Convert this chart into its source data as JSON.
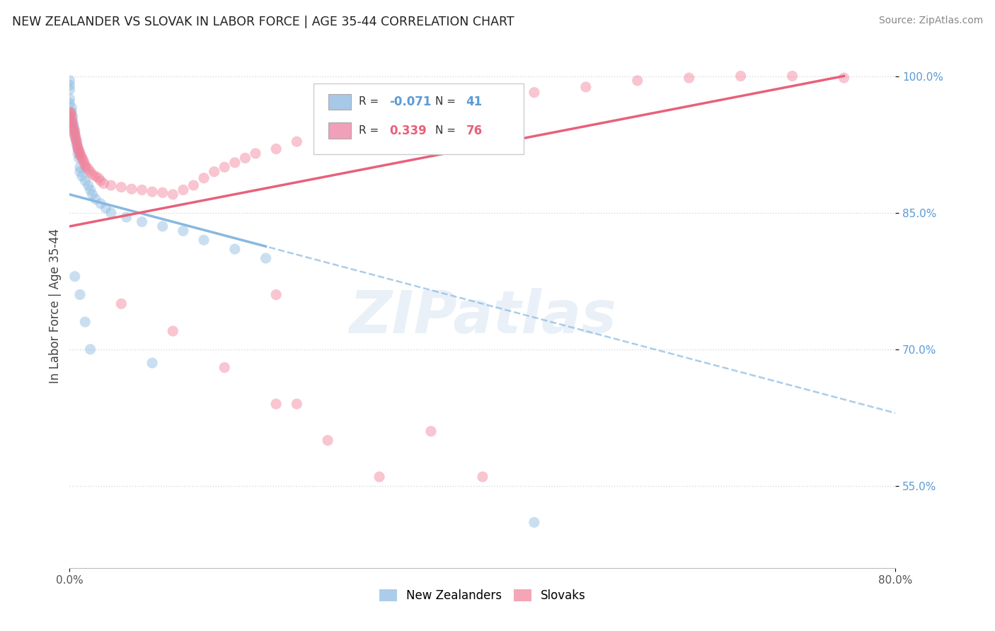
{
  "title": "NEW ZEALANDER VS SLOVAK IN LABOR FORCE | AGE 35-44 CORRELATION CHART",
  "source": "Source: ZipAtlas.com",
  "ylabel": "In Labor Force | Age 35-44",
  "xmin": 0.0,
  "xmax": 0.8,
  "ymin": 0.46,
  "ymax": 1.035,
  "y_tick_values": [
    0.55,
    0.7,
    0.85,
    1.0
  ],
  "legend_entries": [
    {
      "label": "New Zealanders",
      "color": "#a8c8e8",
      "R": "-0.071",
      "N": "41"
    },
    {
      "label": "Slovaks",
      "color": "#f0a0b8",
      "R": "0.339",
      "N": "76"
    }
  ],
  "watermark": "ZIPatlas",
  "background_color": "#ffffff",
  "scatter_size": 120,
  "scatter_alpha": 0.45,
  "nz_color": "#88b8e0",
  "sk_color": "#f08098",
  "nz_line_color": "#88b8e0",
  "sk_line_color": "#e8607a",
  "grid_color": "#d8d8d8",
  "legend_R_color_nz": "#5b9bd5",
  "legend_R_color_sk": "#e8607a"
}
